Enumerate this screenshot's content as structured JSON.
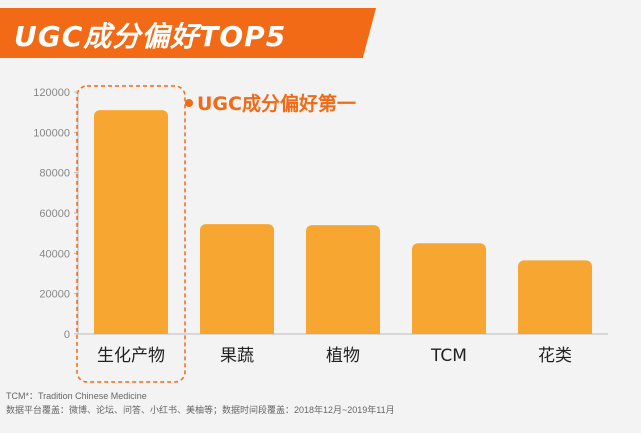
{
  "header": {
    "title": "UGC成分偏好TOP5",
    "accent_color": "#f26a16"
  },
  "annotation": {
    "text": "UGC成分偏好第一",
    "bullet_color": "#f26a16",
    "highlight_category": "生化产物"
  },
  "chart_data": {
    "type": "bar",
    "title": "UGC成分偏好TOP5",
    "categories": [
      "生化产物",
      "果蔬",
      "植物",
      "TCM",
      "花类"
    ],
    "values": [
      111000,
      54500,
      54000,
      45000,
      36500
    ],
    "ylim": [
      0,
      120000
    ],
    "yticks": [
      0,
      20000,
      40000,
      60000,
      80000,
      100000,
      120000
    ],
    "ytick_labels": [
      "0",
      "20000",
      "40000",
      "60000",
      "80000",
      "100000",
      "120000"
    ],
    "xlabel": "",
    "ylabel": "",
    "grid": false,
    "legend": "none",
    "bar_color": "#f8a632"
  },
  "footnotes": {
    "tcm": "TCM*：Tradition Chinese Medicine",
    "source": "数据平台覆盖：微博、论坛、问答、小红书、美柚等；数据时间段覆盖：2018年12月~2019年11月"
  }
}
